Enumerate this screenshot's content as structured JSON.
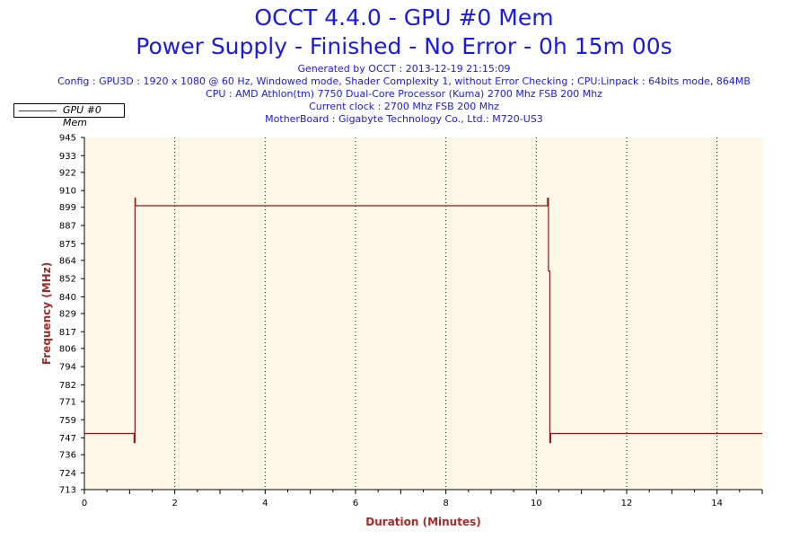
{
  "header": {
    "title": "OCCT 4.4.0 - GPU #0 Mem",
    "subtitle": "Power Supply - Finished - No Error - 0h 15m 00s",
    "generated": "Generated by OCCT : 2013-12-19 21:15:09",
    "config": "Config : GPU3D : 1920 x 1080 @ 60 Hz, Windowed mode, Shader Complexity 1, without Error Checking ; CPU:Linpack : 64bits mode, 864MB",
    "cpu": "CPU : AMD Athlon(tm) 7750 Dual-Core Processor (Kuma) 2700 Mhz FSB 200 Mhz",
    "clock": "Current clock : 2700 Mhz FSB 200 Mhz",
    "motherboard": "MotherBoard : Gigabyte Technology Co., Ltd.: M720-US3"
  },
  "colors": {
    "title": "#1a1ae6",
    "plot_bg": "#fdf8e8",
    "series": "#8b1a1a",
    "axis_title": "#a52a2a"
  },
  "chart_data": {
    "type": "line",
    "xlabel": "Duration (Minutes)",
    "ylabel": "Frequency (MHz)",
    "xlim": [
      0,
      15
    ],
    "ylim": [
      713,
      945
    ],
    "x_ticks": [
      0,
      2,
      4,
      6,
      8,
      10,
      12,
      14
    ],
    "y_ticks": [
      713,
      724,
      736,
      747,
      759,
      771,
      782,
      794,
      806,
      817,
      829,
      840,
      852,
      864,
      875,
      887,
      899,
      910,
      922,
      933,
      945
    ],
    "grid": "vertical-dotted",
    "legend_position": "top-left",
    "series": [
      {
        "name": "GPU #0 Mem",
        "x": [
          0,
          1.1,
          1.1,
          1.12,
          1.12,
          1.13,
          1.13,
          10.25,
          10.25,
          10.27,
          10.27,
          10.3,
          10.3,
          10.32,
          10.32,
          15
        ],
        "y": [
          750,
          750,
          744,
          744,
          905,
          905,
          900,
          900,
          905,
          905,
          857,
          857,
          744,
          744,
          750,
          750
        ]
      }
    ]
  }
}
